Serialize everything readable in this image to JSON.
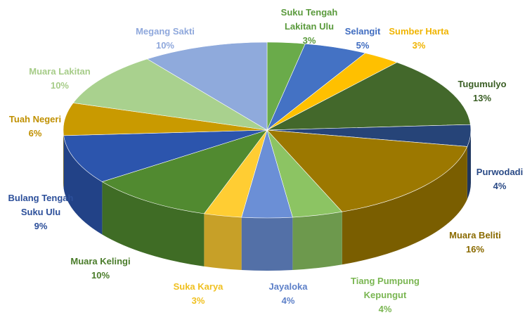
{
  "chart_data": {
    "type": "pie3d",
    "categories": [
      "Suku Tengah Lakitan Ulu",
      "Selangit",
      "Sumber Harta",
      "Tugumulyo",
      "Purwodadi",
      "Muara Beliti",
      "Tiang Pumpung Kepungut",
      "Jayaloka",
      "Suka Karya",
      "Muara Kelingi",
      "Bulang Tengah Suku Ulu",
      "Tuah Negeri",
      "Muara Lakitan",
      "Megang Sakti"
    ],
    "values": [
      3,
      5,
      3,
      13,
      4,
      16,
      4,
      4,
      3,
      10,
      9,
      6,
      10,
      10
    ],
    "value_labels": [
      "3%",
      "5%",
      "3%",
      "13%",
      "4%",
      "16%",
      "4%",
      "4%",
      "3%",
      "10%",
      "9%",
      "6%",
      "10%",
      "10%"
    ],
    "colors": [
      "#6aab4a",
      "#4472c4",
      "#ffc000",
      "#43682b",
      "#264478",
      "#9c7800",
      "#8cc463",
      "#6b8fd6",
      "#ffcd33",
      "#518a30",
      "#2c55ad",
      "#c99a00",
      "#a9d18e",
      "#8faadc"
    ],
    "label_colors": [
      "#5a9a3c",
      "#3f6cc0",
      "#f0b400",
      "#3a5e24",
      "#2a4a86",
      "#8a6a00",
      "#7ab652",
      "#5c7fc8",
      "#f0c020",
      "#4a7c2a",
      "#2c4f9a",
      "#c09000",
      "#a6cc88",
      "#8fa8dc"
    ]
  }
}
